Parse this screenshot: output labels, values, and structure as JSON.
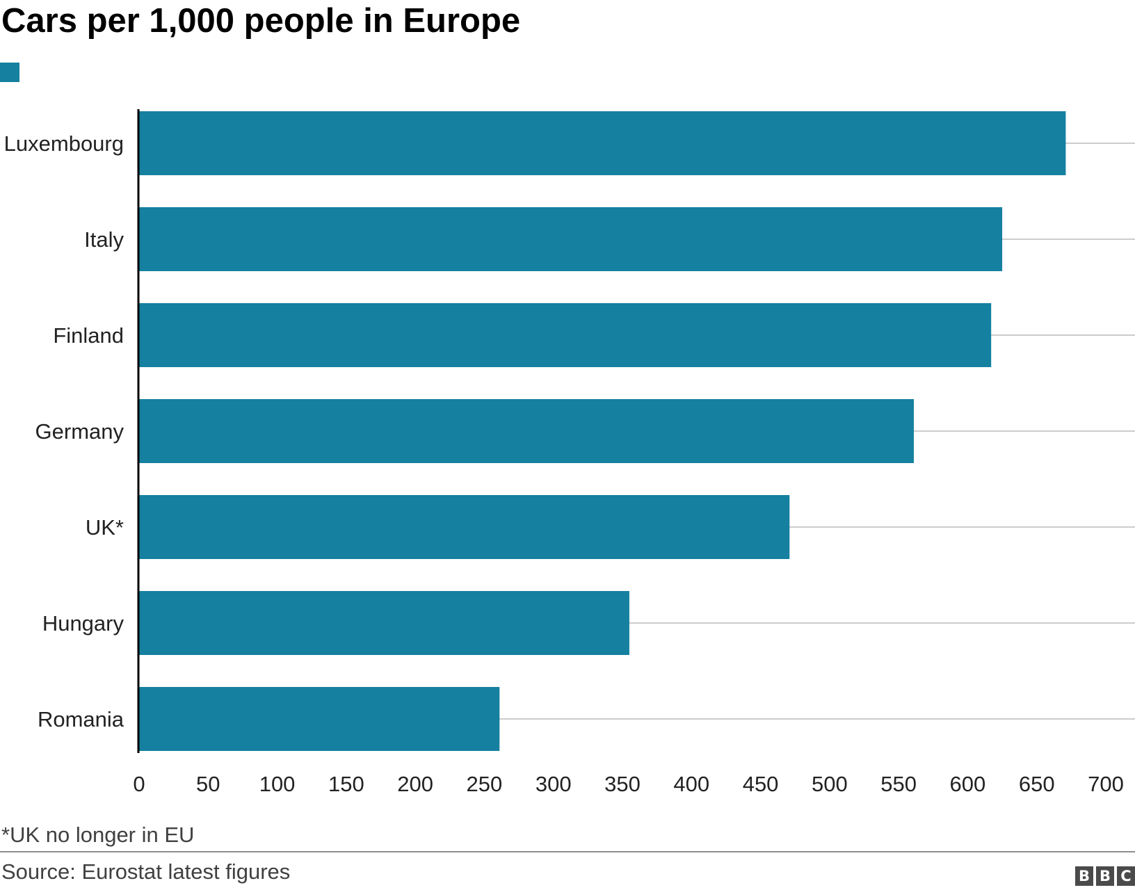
{
  "chart_data": {
    "type": "bar",
    "orientation": "horizontal",
    "title": "Cars per 1,000 people in Europe",
    "categories": [
      "Luxembourg",
      "Italy",
      "Finland",
      "Germany",
      "UK*",
      "Hungary",
      "Romania"
    ],
    "series": [
      {
        "values": [
          671,
          625,
          617,
          561,
          471,
          355,
          261
        ]
      }
    ],
    "xlabel": "",
    "ylabel": "",
    "xlim": [
      0,
      700
    ],
    "xticks": [
      "0",
      "50",
      "100",
      "150",
      "200",
      "250",
      "300",
      "350",
      "400",
      "450",
      "500",
      "550",
      "600",
      "650",
      "700"
    ],
    "grid": true,
    "legend": "top-left",
    "colors": {
      "bar": "#1580a0",
      "gridline": "#cccccc",
      "axis": "#000000"
    }
  },
  "footnote": "*UK no longer in EU",
  "source": "Source: Eurostat latest figures",
  "logo": "BBC"
}
